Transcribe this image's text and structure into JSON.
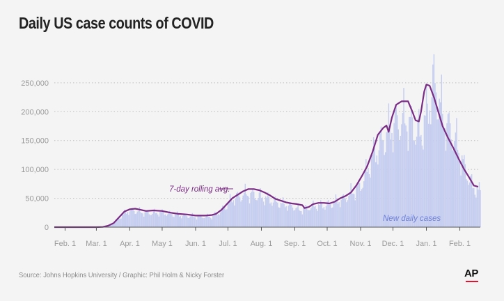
{
  "title": "Daily US case counts of COVID",
  "source": "Source: Johns Hopkins University / Graphic: Phil Holm & Nicky Forster",
  "logo": "AP",
  "colors": {
    "background": "#f4f4f4",
    "bars": "#c5cdf0",
    "line": "#7a2c84",
    "bars_label": "#6d7fd8",
    "grid": "#bdbdbd",
    "axis": "#555555",
    "logo_accent": "#e8112d"
  },
  "chart_data": {
    "type": "bar",
    "title": "Daily US case counts of COVID",
    "ylim": [
      0,
      280000
    ],
    "y_ticks": [
      0,
      50000,
      100000,
      150000,
      200000,
      250000
    ],
    "y_tick_labels": [
      "0",
      "50,000",
      "100,000",
      "150,000",
      "200,000",
      "250,000"
    ],
    "grid": true,
    "x_domain_days": [
      0,
      395
    ],
    "x_ticks": [
      {
        "day": 10,
        "label": "Feb. 1"
      },
      {
        "day": 39,
        "label": "Mar. 1"
      },
      {
        "day": 70,
        "label": "Apr. 1"
      },
      {
        "day": 100,
        "label": "May 1"
      },
      {
        "day": 131,
        "label": "Jun. 1"
      },
      {
        "day": 161,
        "label": "Jul. 1"
      },
      {
        "day": 192,
        "label": "Aug. 1"
      },
      {
        "day": 223,
        "label": "Sep. 1"
      },
      {
        "day": 253,
        "label": "Oct. 1"
      },
      {
        "day": 284,
        "label": "Nov. 1"
      },
      {
        "day": 314,
        "label": "Dec. 1"
      },
      {
        "day": 345,
        "label": "Jan. 1"
      },
      {
        "day": 376,
        "label": "Feb. 1"
      }
    ],
    "series": [
      {
        "name": "New daily cases",
        "type": "bar",
        "note": "key points (day, cases) of the daily-case envelope; daily bars vary around the rolling average",
        "points": [
          [
            0,
            0
          ],
          [
            39,
            0
          ],
          [
            48,
            500
          ],
          [
            55,
            7000
          ],
          [
            62,
            22000
          ],
          [
            68,
            32000
          ],
          [
            74,
            33000
          ],
          [
            85,
            28000
          ],
          [
            100,
            29000
          ],
          [
            115,
            24000
          ],
          [
            131,
            21000
          ],
          [
            146,
            21000
          ],
          [
            155,
            33000
          ],
          [
            165,
            56000
          ],
          [
            178,
            67000
          ],
          [
            190,
            62000
          ],
          [
            210,
            47000
          ],
          [
            223,
            40000
          ],
          [
            228,
            34000
          ],
          [
            240,
            42000
          ],
          [
            253,
            44000
          ],
          [
            268,
            56000
          ],
          [
            284,
            82000
          ],
          [
            295,
            140000
          ],
          [
            305,
            175000
          ],
          [
            315,
            205000
          ],
          [
            325,
            215000
          ],
          [
            332,
            200000
          ],
          [
            340,
            185000
          ],
          [
            347,
            240000
          ],
          [
            352,
            290000
          ],
          [
            362,
            210000
          ],
          [
            372,
            175000
          ],
          [
            380,
            120000
          ],
          [
            388,
            80000
          ],
          [
            395,
            70000
          ]
        ]
      },
      {
        "name": "7-day rolling avg.",
        "type": "line",
        "points": [
          [
            0,
            0
          ],
          [
            39,
            0
          ],
          [
            45,
            400
          ],
          [
            50,
            2500
          ],
          [
            55,
            7000
          ],
          [
            60,
            17000
          ],
          [
            65,
            27000
          ],
          [
            70,
            31000
          ],
          [
            75,
            32000
          ],
          [
            80,
            30000
          ],
          [
            85,
            28000
          ],
          [
            92,
            29000
          ],
          [
            100,
            28000
          ],
          [
            108,
            25000
          ],
          [
            115,
            23000
          ],
          [
            123,
            22000
          ],
          [
            131,
            20000
          ],
          [
            140,
            20000
          ],
          [
            146,
            21000
          ],
          [
            150,
            23000
          ],
          [
            155,
            30000
          ],
          [
            160,
            40000
          ],
          [
            165,
            50000
          ],
          [
            170,
            56000
          ],
          [
            175,
            62000
          ],
          [
            180,
            66000
          ],
          [
            185,
            66000
          ],
          [
            190,
            64000
          ],
          [
            195,
            60000
          ],
          [
            200,
            55000
          ],
          [
            205,
            49000
          ],
          [
            210,
            46000
          ],
          [
            215,
            43000
          ],
          [
            220,
            41000
          ],
          [
            225,
            40000
          ],
          [
            230,
            38000
          ],
          [
            232,
            33000
          ],
          [
            236,
            35000
          ],
          [
            240,
            40000
          ],
          [
            245,
            42000
          ],
          [
            250,
            42000
          ],
          [
            255,
            41000
          ],
          [
            260,
            44000
          ],
          [
            265,
            50000
          ],
          [
            270,
            54000
          ],
          [
            275,
            60000
          ],
          [
            280,
            72000
          ],
          [
            285,
            88000
          ],
          [
            290,
            105000
          ],
          [
            295,
            130000
          ],
          [
            300,
            160000
          ],
          [
            305,
            172000
          ],
          [
            308,
            176000
          ],
          [
            310,
            165000
          ],
          [
            313,
            190000
          ],
          [
            317,
            212000
          ],
          [
            322,
            218000
          ],
          [
            328,
            218000
          ],
          [
            332,
            200000
          ],
          [
            335,
            185000
          ],
          [
            338,
            183000
          ],
          [
            340,
            200000
          ],
          [
            343,
            235000
          ],
          [
            345,
            247000
          ],
          [
            348,
            245000
          ],
          [
            352,
            225000
          ],
          [
            356,
            200000
          ],
          [
            360,
            175000
          ],
          [
            365,
            155000
          ],
          [
            370,
            137000
          ],
          [
            375,
            118000
          ],
          [
            380,
            100000
          ],
          [
            385,
            85000
          ],
          [
            389,
            72000
          ],
          [
            393,
            70000
          ]
        ]
      }
    ],
    "annotations": [
      {
        "text": "7-day rolling avg.",
        "series": "7-day rolling avg."
      },
      {
        "text": "New daily cases",
        "series": "New daily cases"
      }
    ]
  }
}
